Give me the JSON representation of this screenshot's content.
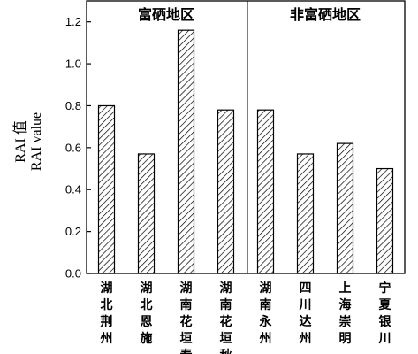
{
  "chart_data": {
    "type": "bar",
    "categories": [
      "湖北荆州",
      "湖北恩施",
      "湖南花垣春",
      "湖南花垣秋",
      "湖南永州",
      "四川达州",
      "上海崇明",
      "宁夏银川"
    ],
    "values": [
      0.8,
      0.57,
      1.16,
      0.78,
      0.78,
      0.57,
      0.62,
      0.5
    ],
    "ylabel_cn": "RAI 值",
    "ylabel_en": "RAI value",
    "ylim": [
      0.0,
      1.3
    ],
    "yticks": [
      "0.0",
      "0.2",
      "0.4",
      "0.6",
      "0.8",
      "1.0",
      "1.2"
    ],
    "groups": [
      {
        "label": "富硒地区",
        "categories": 4
      },
      {
        "label": "非富硒地区",
        "categories": 4
      }
    ],
    "bar_pattern": "diagonal-hatch",
    "bar_color": "#000000",
    "grid": false,
    "legend": "none"
  }
}
